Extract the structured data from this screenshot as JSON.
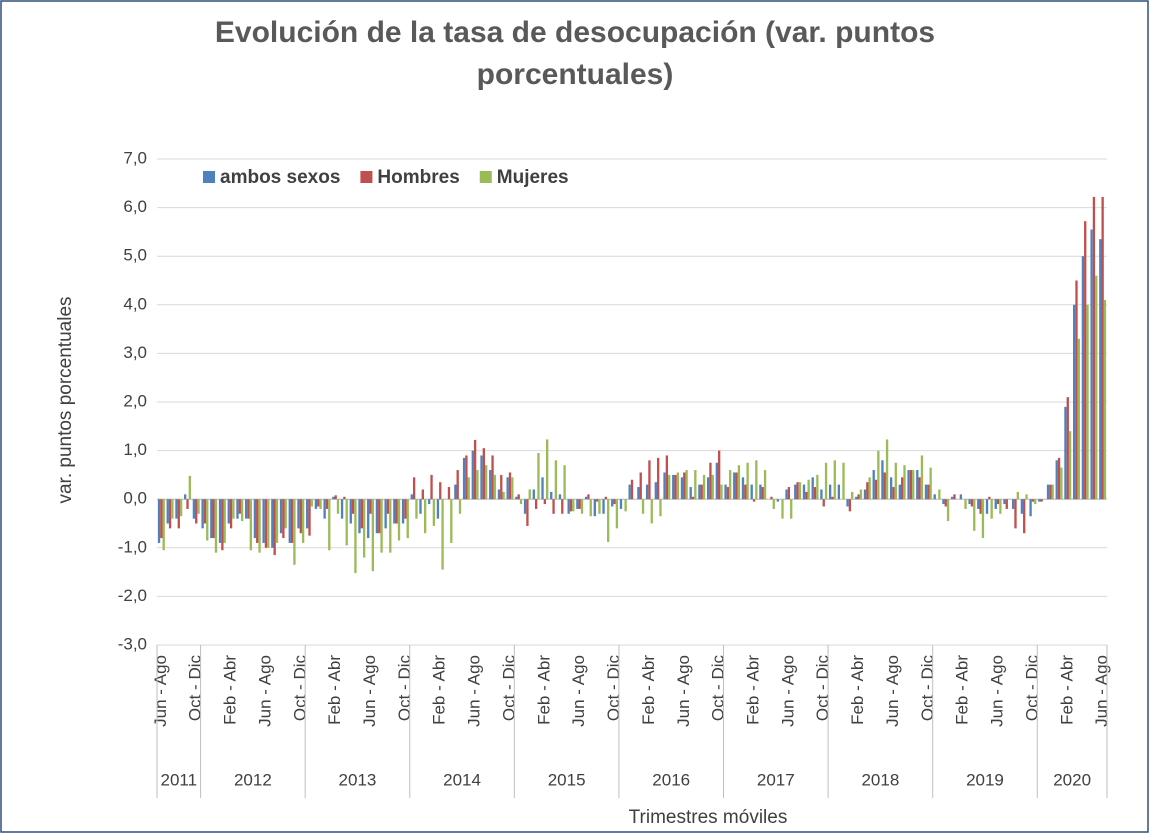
{
  "chart_data": {
    "type": "bar",
    "title": "Evolución de la tasa de desocupación (var. puntos porcentuales)",
    "x_label": "Trimestres móviles",
    "y_label": "var. puntos porcentuales",
    "categories": [
      "Jun - Ago",
      null,
      null,
      null,
      "Oct - Dic",
      null,
      null,
      null,
      "Feb - Abr",
      null,
      null,
      null,
      "Jun - Ago",
      null,
      null,
      null,
      "Oct - Dic",
      null,
      null,
      null,
      "Feb - Abr",
      null,
      null,
      null,
      "Jun - Ago",
      null,
      null,
      null,
      "Oct - Dic",
      null,
      null,
      null,
      "Feb - Abr",
      null,
      null,
      null,
      "Jun - Ago",
      null,
      null,
      null,
      "Oct - Dic",
      null,
      null,
      null,
      "Feb - Abr",
      null,
      null,
      null,
      "Jun - Ago",
      null,
      null,
      null,
      "Oct - Dic",
      null,
      null,
      null,
      "Feb - Abr",
      null,
      null,
      null,
      "Jun - Ago",
      null,
      null,
      null,
      "Oct - Dic",
      null,
      null,
      null,
      "Feb - Abr",
      null,
      null,
      null,
      "Jun - Ago",
      null,
      null,
      null,
      "Oct - Dic",
      null,
      null,
      null,
      "Feb - Abr",
      null,
      null,
      null,
      "Jun - Ago",
      null,
      null,
      null,
      "Oct - Dic",
      null,
      null,
      null,
      "Feb - Abr",
      null,
      null,
      null,
      "Jun - Ago",
      null,
      null,
      null,
      "Oct - Dic",
      null,
      null,
      null,
      "Feb - Abr",
      null,
      null,
      null,
      "Jun - Ago"
    ],
    "groups": [
      {
        "label": "2011",
        "size": 5
      },
      {
        "label": "2012",
        "size": 12
      },
      {
        "label": "2013",
        "size": 12
      },
      {
        "label": "2014",
        "size": 12
      },
      {
        "label": "2015",
        "size": 12
      },
      {
        "label": "2016",
        "size": 12
      },
      {
        "label": "2017",
        "size": 12
      },
      {
        "label": "2018",
        "size": 12
      },
      {
        "label": "2019",
        "size": 12
      },
      {
        "label": "2020",
        "size": 8
      }
    ],
    "series": [
      {
        "name": "ambos sexos",
        "color": "#4f81bd",
        "values": [
          -0.9,
          -0.5,
          -0.4,
          0.1,
          -0.4,
          -0.6,
          -0.8,
          -0.9,
          -0.5,
          -0.4,
          -0.4,
          -0.8,
          -0.9,
          -1.0,
          -0.7,
          -0.9,
          -0.6,
          -0.6,
          -0.2,
          -0.4,
          0.05,
          -0.4,
          -0.5,
          -0.7,
          -0.8,
          -0.7,
          -0.6,
          -0.5,
          -0.5,
          0.1,
          -0.3,
          -0.1,
          -0.4,
          0.0,
          0.3,
          0.85,
          1.0,
          0.9,
          0.6,
          0.2,
          0.45,
          0.05,
          -0.3,
          0.2,
          0.45,
          0.15,
          0.1,
          -0.3,
          -0.2,
          0.05,
          -0.35,
          -0.3,
          -0.15,
          -0.2,
          0.3,
          0.25,
          0.3,
          0.35,
          0.55,
          0.5,
          0.45,
          0.25,
          0.3,
          0.45,
          0.75,
          0.3,
          0.55,
          0.45,
          0.3,
          0.3,
          0.0,
          -0.05,
          0.2,
          0.3,
          0.3,
          0.45,
          0.2,
          0.3,
          0.3,
          -0.15,
          0.05,
          0.2,
          0.6,
          0.8,
          0.45,
          0.3,
          0.6,
          0.6,
          0.3,
          0.1,
          -0.1,
          0.05,
          0.1,
          -0.1,
          -0.2,
          -0.3,
          -0.2,
          -0.1,
          -0.2,
          -0.3,
          -0.35,
          -0.05,
          0.3,
          0.8,
          1.9,
          4.0,
          5.0,
          5.55,
          5.35
        ]
      },
      {
        "name": "Hombres",
        "color": "#c0504d",
        "values": [
          -0.8,
          -0.6,
          -0.6,
          -0.2,
          -0.5,
          -0.5,
          -0.8,
          -1.05,
          -0.6,
          -0.3,
          -0.4,
          -0.9,
          -1.0,
          -1.15,
          -0.8,
          -0.9,
          -0.7,
          -0.75,
          -0.15,
          -0.2,
          0.08,
          0.05,
          -0.3,
          -0.6,
          -0.3,
          -0.7,
          -0.3,
          -0.5,
          -0.4,
          0.45,
          0.2,
          0.5,
          0.35,
          0.25,
          0.6,
          0.9,
          1.22,
          1.05,
          0.9,
          0.5,
          0.55,
          0.1,
          -0.55,
          -0.2,
          -0.1,
          -0.3,
          -0.3,
          -0.25,
          -0.2,
          0.1,
          -0.05,
          0.05,
          -0.1,
          0.0,
          0.4,
          0.55,
          0.8,
          0.85,
          0.9,
          0.5,
          0.55,
          0.05,
          0.3,
          0.75,
          1.0,
          0.25,
          0.55,
          0.3,
          -0.05,
          0.25,
          0.05,
          0.0,
          0.25,
          0.35,
          0.15,
          0.25,
          -0.15,
          0.05,
          0.0,
          -0.25,
          0.1,
          0.35,
          0.4,
          0.55,
          0.25,
          0.45,
          0.6,
          0.45,
          0.3,
          0.0,
          -0.15,
          0.1,
          0.0,
          -0.15,
          -0.3,
          0.05,
          -0.1,
          -0.2,
          -0.6,
          -0.7,
          -0.05,
          -0.05,
          0.3,
          0.85,
          2.1,
          4.5,
          5.72,
          6.22,
          6.22
        ]
      },
      {
        "name": "Mujeres",
        "color": "#9bbb59",
        "values": [
          -1.05,
          -0.4,
          -0.35,
          0.48,
          -0.3,
          -0.85,
          -1.1,
          -0.9,
          -0.4,
          -0.45,
          -1.05,
          -1.1,
          -1.0,
          -0.9,
          -0.6,
          -1.35,
          -0.9,
          -0.15,
          -0.2,
          -1.05,
          -0.3,
          -0.95,
          -1.52,
          -1.2,
          -1.48,
          -1.1,
          -1.1,
          -0.85,
          -0.8,
          -0.4,
          -0.7,
          -0.55,
          -1.45,
          -0.9,
          -0.3,
          0.45,
          0.6,
          0.7,
          0.5,
          0.15,
          0.45,
          -0.1,
          0.2,
          0.95,
          1.23,
          0.8,
          0.7,
          -0.25,
          -0.3,
          -0.35,
          -0.3,
          -0.88,
          -0.6,
          -0.25,
          0.0,
          -0.3,
          -0.5,
          -0.35,
          0.5,
          0.55,
          0.6,
          0.6,
          0.5,
          0.5,
          0.3,
          0.6,
          0.7,
          0.75,
          0.8,
          0.6,
          -0.2,
          -0.4,
          -0.4,
          0.35,
          0.4,
          0.5,
          0.75,
          0.8,
          0.75,
          0.15,
          0.2,
          0.45,
          1.0,
          1.23,
          0.75,
          0.7,
          0.6,
          0.9,
          0.65,
          0.2,
          -0.45,
          0.0,
          -0.2,
          -0.65,
          -0.8,
          -0.4,
          -0.3,
          0.0,
          0.15,
          0.1,
          -0.1,
          0.0,
          0.3,
          0.65,
          1.4,
          3.3,
          4.0,
          4.6,
          4.1
        ]
      }
    ],
    "ylim": [
      -3,
      7
    ],
    "yticks": [
      {
        "value": -3,
        "label": "-3,0"
      },
      {
        "value": -2,
        "label": "-2,0"
      },
      {
        "value": -1,
        "label": "-1,0"
      },
      {
        "value": 0,
        "label": "0,0"
      },
      {
        "value": 1,
        "label": "1,0"
      },
      {
        "value": 2,
        "label": "2,0"
      },
      {
        "value": 3,
        "label": "3,0"
      },
      {
        "value": 4,
        "label": "4,0"
      },
      {
        "value": 5,
        "label": "5,0"
      },
      {
        "value": 6,
        "label": "6,0"
      },
      {
        "value": 7,
        "label": "7,0"
      }
    ],
    "grid": true,
    "legend": "top-left"
  }
}
